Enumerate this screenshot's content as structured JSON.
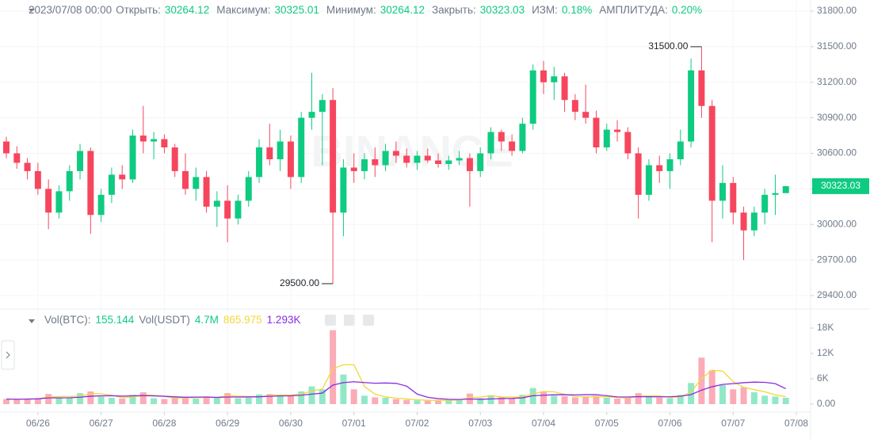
{
  "header": {
    "datetime": "2023/07/08 00:00",
    "fields": [
      {
        "label": "Открыть:",
        "value": "30264.12"
      },
      {
        "label": "Максимум:",
        "value": "30325.01"
      },
      {
        "label": "Минимум:",
        "value": "30264.12"
      },
      {
        "label": "Закрыть:",
        "value": "30323.03"
      },
      {
        "label": "ИЗМ:",
        "value": "0.18%"
      },
      {
        "label": "АМПЛИТУДА:",
        "value": "0.20%"
      }
    ]
  },
  "chart_data": [
    {
      "type": "candlestick",
      "watermark": "BINANCE",
      "up_color": "#0ecb81",
      "down_color": "#f6465d",
      "grid": true,
      "high_label": "31500.00",
      "low_label": "29500.00",
      "last_price_label": "30323.03",
      "xlim": [
        -14.4,
        293.4
      ],
      "ylim": [
        29286,
        31894
      ],
      "yticks": [
        {
          "value": 29400,
          "label": "29400.00"
        },
        {
          "value": 29700,
          "label": "29700.00"
        },
        {
          "value": 30000,
          "label": "30000.00"
        },
        {
          "value": 30300,
          "label": "30300.00"
        },
        {
          "value": 30600,
          "label": "30600.00"
        },
        {
          "value": 30900,
          "label": "30900.00"
        },
        {
          "value": 31200,
          "label": "31200.00"
        },
        {
          "value": 31500,
          "label": "31500.00"
        },
        {
          "value": 31800,
          "label": "31800.00"
        }
      ],
      "x": [
        -12,
        -8,
        -4,
        0,
        4,
        8,
        12,
        16,
        20,
        24,
        28,
        32,
        36,
        40,
        44,
        48,
        52,
        56,
        60,
        64,
        68,
        72,
        76,
        80,
        84,
        88,
        92,
        96,
        100,
        104,
        108,
        112,
        116,
        120,
        124,
        128,
        132,
        136,
        140,
        144,
        148,
        152,
        156,
        160,
        164,
        168,
        172,
        176,
        180,
        184,
        188,
        192,
        196,
        200,
        204,
        208,
        212,
        216,
        220,
        224,
        228,
        232,
        236,
        240,
        244,
        248,
        252,
        256,
        260,
        264,
        268,
        272,
        276,
        280,
        284
      ],
      "open": [
        30700,
        30600,
        30520,
        30450,
        30300,
        30100,
        30280,
        30450,
        30620,
        30080,
        30250,
        30420,
        30380,
        30750,
        30700,
        30720,
        30650,
        30450,
        30300,
        30400,
        30150,
        30200,
        30050,
        30200,
        30400,
        30650,
        30550,
        30700,
        30400,
        30900,
        30950,
        31050,
        30100,
        30480,
        30450,
        30550,
        30500,
        30620,
        30580,
        30520,
        30580,
        30540,
        30510,
        30540,
        30560,
        30450,
        30600,
        30780,
        30700,
        30620,
        30850,
        31300,
        31200,
        31250,
        31050,
        30950,
        30900,
        30650,
        30800,
        30780,
        30600,
        30250,
        30500,
        30450,
        30550,
        30700,
        31300,
        31000,
        30200,
        30350,
        30100,
        29950,
        30100,
        30250,
        30264.12
      ],
      "high": [
        30740,
        30660,
        30560,
        30520,
        30380,
        30330,
        30500,
        30680,
        30650,
        30300,
        30480,
        30500,
        30800,
        31000,
        30780,
        30760,
        30680,
        30600,
        30480,
        30450,
        30280,
        30330,
        30250,
        30450,
        30720,
        30850,
        30800,
        30750,
        30950,
        31280,
        31100,
        31150,
        30550,
        30600,
        30600,
        30650,
        30680,
        30700,
        30640,
        30620,
        30640,
        30600,
        30580,
        30620,
        30600,
        30650,
        30820,
        30800,
        30760,
        30900,
        31350,
        31380,
        31330,
        31280,
        31100,
        31180,
        30960,
        30850,
        30880,
        30820,
        30650,
        30550,
        30580,
        30600,
        30800,
        31400,
        31500,
        31050,
        30500,
        30400,
        30150,
        30150,
        30300,
        30420,
        30325.01
      ],
      "low": [
        30560,
        30470,
        30380,
        30250,
        29960,
        30050,
        30200,
        30380,
        29920,
        30020,
        30180,
        30300,
        30350,
        30600,
        30550,
        30600,
        30400,
        30250,
        30200,
        30100,
        29980,
        29850,
        30000,
        30150,
        30350,
        30500,
        30450,
        30300,
        30350,
        30800,
        30500,
        29500,
        29900,
        30350,
        30380,
        30400,
        30450,
        30520,
        30480,
        30460,
        30520,
        30480,
        30460,
        30500,
        30150,
        30400,
        30550,
        30620,
        30580,
        30600,
        30800,
        31100,
        31050,
        30950,
        30880,
        30850,
        30600,
        30620,
        30700,
        30550,
        30050,
        30200,
        30350,
        30300,
        30500,
        30650,
        30900,
        29850,
        30050,
        30000,
        29700,
        29900,
        30000,
        30080,
        30264.12
      ],
      "close": [
        30600,
        30520,
        30450,
        30300,
        30100,
        30280,
        30450,
        30620,
        30080,
        30250,
        30420,
        30380,
        30750,
        30700,
        30720,
        30650,
        30450,
        30300,
        30400,
        30150,
        30200,
        30050,
        30200,
        30400,
        30650,
        30550,
        30700,
        30400,
        30900,
        30950,
        31050,
        30100,
        30480,
        30450,
        30550,
        30500,
        30620,
        30580,
        30520,
        30580,
        30540,
        30510,
        30540,
        30560,
        30450,
        30600,
        30780,
        30700,
        30620,
        30850,
        31300,
        31200,
        31250,
        31050,
        30950,
        30900,
        30650,
        30800,
        30780,
        30600,
        30250,
        30500,
        30450,
        30550,
        30700,
        31300,
        31000,
        30200,
        30350,
        30100,
        29950,
        30100,
        30250,
        30264.12,
        30323.03
      ]
    },
    {
      "type": "bar",
      "legend": [
        {
          "label": "Vol(BTC):",
          "value": "155.144"
        },
        {
          "label": "Vol(USDT)",
          "value": "4.7M"
        }
      ],
      "ylim": [
        -1875,
        21562
      ],
      "yticks": [
        {
          "value": 0,
          "label": "0.00"
        },
        {
          "value": 6000,
          "label": "6K"
        },
        {
          "value": 12000,
          "label": "12K"
        },
        {
          "value": 18000,
          "label": "18K"
        }
      ],
      "xticks": [
        {
          "value": 0,
          "label": "06/26"
        },
        {
          "value": 24,
          "label": "06/27"
        },
        {
          "value": 48,
          "label": "06/28"
        },
        {
          "value": 72,
          "label": "06/29"
        },
        {
          "value": 96,
          "label": "06/30"
        },
        {
          "value": 120,
          "label": "07/01"
        },
        {
          "value": 144,
          "label": "07/02"
        },
        {
          "value": 168,
          "label": "07/03"
        },
        {
          "value": 192,
          "label": "07/04"
        },
        {
          "value": 216,
          "label": "07/05"
        },
        {
          "value": 240,
          "label": "07/06"
        },
        {
          "value": 264,
          "label": "07/07"
        },
        {
          "value": 288,
          "label": "07/08"
        }
      ],
      "values": [
        1200,
        1100,
        1300,
        1400,
        2400,
        1500,
        1600,
        2600,
        3000,
        1800,
        1500,
        1300,
        2200,
        2800,
        1400,
        1200,
        1600,
        1700,
        1300,
        1800,
        1700,
        2600,
        1400,
        1500,
        2300,
        2400,
        1900,
        2200,
        3000,
        4200,
        3500,
        17500,
        7000,
        3500,
        2000,
        1600,
        1500,
        1200,
        1000,
        900,
        800,
        900,
        1000,
        1100,
        2500,
        1400,
        2100,
        1600,
        1300,
        2200,
        3800,
        3000,
        2000,
        1900,
        1600,
        1700,
        2000,
        1500,
        1300,
        1500,
        2600,
        1800,
        1500,
        1400,
        2200,
        5000,
        11000,
        8000,
        4500,
        3500,
        4000,
        2800,
        2000,
        1800,
        1500
      ],
      "ma": [
        {
          "color": "#f0d83a",
          "label": "865.975",
          "values": [
            1200,
            1150,
            1200,
            1267,
            1700,
            1767,
            1833,
            1900,
            2400,
            2467,
            2100,
            1533,
            1667,
            2100,
            2133,
            1800,
            1400,
            1500,
            1533,
            1600,
            1600,
            2033,
            1900,
            1833,
            1733,
            2067,
            2200,
            2167,
            2367,
            3133,
            3567,
            8400,
            9333,
            9333,
            4167,
            2367,
            1700,
            1433,
            1233,
            1033,
            900,
            900,
            900,
            1000,
            1533,
            1667,
            2000,
            1700,
            1667,
            1700,
            2433,
            3000,
            2933,
            2300,
            1833,
            1733,
            1767,
            1733,
            1600,
            1433,
            1800,
            1967,
            1967,
            1567,
            1700,
            2867,
            6067,
            8000,
            7833,
            5333,
            4000,
            3433,
            2933,
            2200,
            1767
          ]
        },
        {
          "color": "#8a2be2",
          "label": "1.293K",
          "values": [
            1200,
            1150,
            1200,
            1250,
            1480,
            1483,
            1500,
            1638,
            1863,
            1963,
            1988,
            1888,
            1963,
            2025,
            1950,
            1863,
            1725,
            1625,
            1663,
            1675,
            1600,
            1688,
            1688,
            1700,
            1750,
            1850,
            1950,
            1963,
            2113,
            2363,
            2613,
            4500,
            5088,
            5300,
            5113,
            4950,
            5000,
            4913,
            4275,
            2388,
            1625,
            1300,
            1150,
            1100,
            1213,
            1163,
            1225,
            1313,
            1363,
            1488,
            1988,
            2113,
            2213,
            2238,
            2175,
            2238,
            2250,
            1988,
            1713,
            1688,
            1775,
            1763,
            1725,
            1763,
            1875,
            2250,
            3313,
            4113,
            4663,
            4850,
            5075,
            5213,
            5150,
            4850,
            3650
          ]
        }
      ]
    }
  ]
}
